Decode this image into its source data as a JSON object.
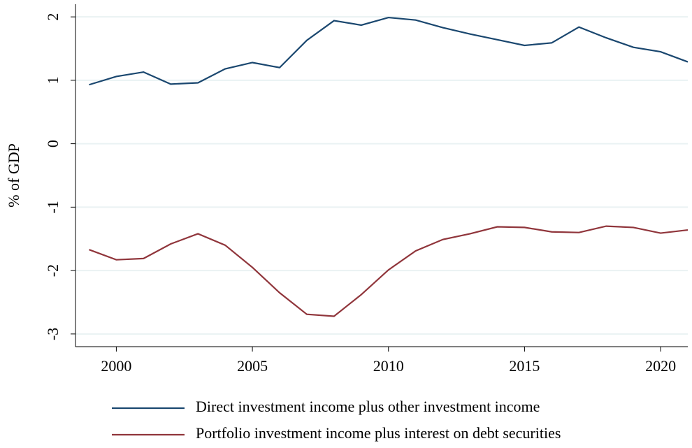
{
  "chart_data": {
    "type": "line",
    "y_label": "% of GDP",
    "x": [
      1999,
      2000,
      2001,
      2002,
      2003,
      2004,
      2005,
      2006,
      2007,
      2008,
      2009,
      2010,
      2011,
      2012,
      2013,
      2014,
      2015,
      2016,
      2017,
      2018,
      2019,
      2020,
      2021
    ],
    "series": [
      {
        "name": "Direct investment income plus other investment income",
        "color": "#1a476f",
        "values": [
          0.93,
          1.06,
          1.13,
          0.94,
          0.96,
          1.18,
          1.28,
          1.2,
          1.63,
          1.94,
          1.87,
          1.99,
          1.95,
          1.83,
          1.73,
          1.64,
          1.55,
          1.59,
          1.84,
          1.67,
          1.52,
          1.45,
          1.29
        ]
      },
      {
        "name": "Portfolio investment income plus interest on debt securities",
        "color": "#90353b",
        "values": [
          -1.67,
          -1.83,
          -1.81,
          -1.58,
          -1.42,
          -1.6,
          -1.95,
          -2.35,
          -2.69,
          -2.72,
          -2.38,
          -1.99,
          -1.69,
          -1.51,
          -1.42,
          -1.31,
          -1.32,
          -1.39,
          -1.4,
          -1.3,
          -1.32,
          -1.41,
          -1.36
        ]
      }
    ],
    "xlim": [
      1998.5,
      2021
    ],
    "xticks": [
      2000,
      2005,
      2010,
      2015,
      2020
    ],
    "ylim": [
      -3.2,
      2.2
    ],
    "yticks": [
      -3,
      -2,
      -1,
      0,
      1,
      2
    ],
    "grid": true,
    "legend": "bottom"
  }
}
